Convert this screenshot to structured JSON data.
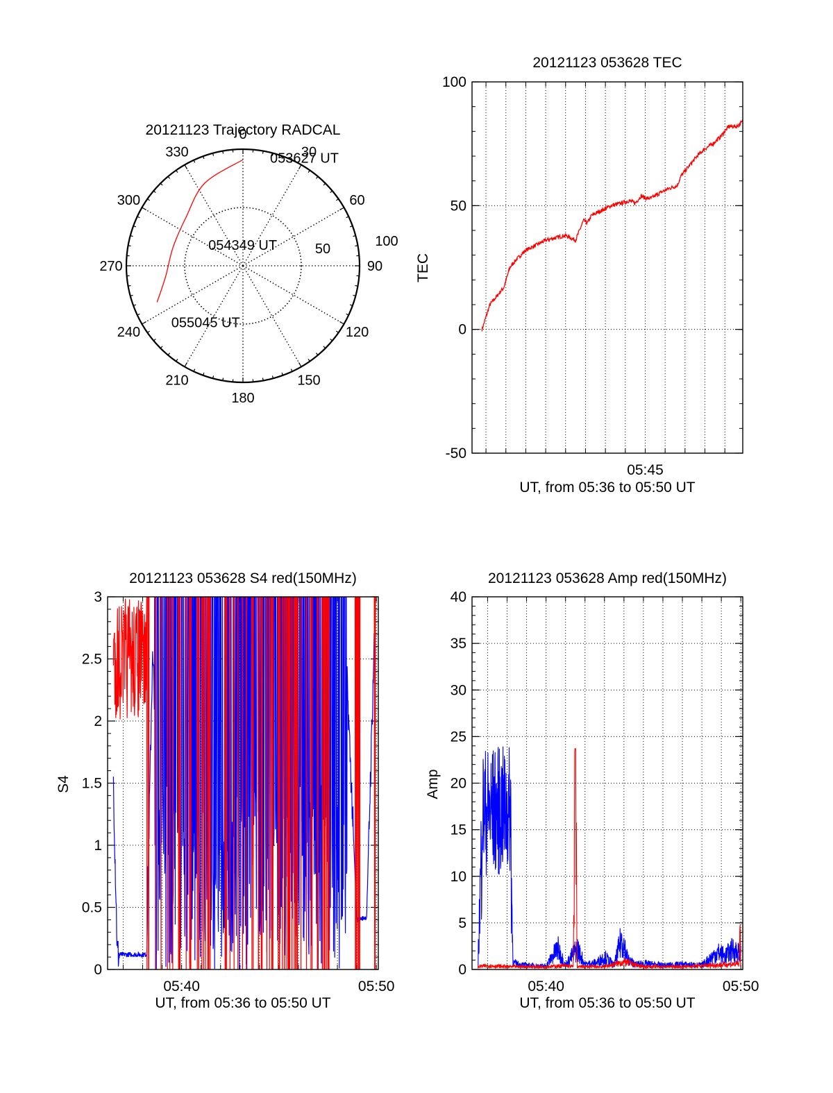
{
  "chart_data": [
    {
      "type": "scatter",
      "title": "20121123 Trajectory RADCAL",
      "azimuth_labels": [
        "0",
        "30",
        "60",
        "90",
        "120",
        "150",
        "180",
        "210",
        "240",
        "270",
        "300",
        "330"
      ],
      "radial_labels": [
        "50",
        "100"
      ],
      "rmax": 100,
      "trajectory": {
        "color": "#ff0000",
        "points": [
          {
            "az": 0,
            "r": 91
          },
          {
            "az": 335,
            "r": 78
          },
          {
            "az": 310,
            "r": 64
          },
          {
            "az": 285,
            "r": 62
          },
          {
            "az": 262,
            "r": 67
          },
          {
            "az": 247,
            "r": 80
          }
        ]
      },
      "annotations": [
        {
          "text": "053627 UT",
          "az": 14,
          "r": 96
        },
        {
          "text": "054349 UT",
          "az": 302,
          "r": 35
        },
        {
          "text": "055045 UT",
          "az": 232,
          "r": 78
        }
      ]
    },
    {
      "type": "line",
      "title": "20121123 053628 TEC",
      "xlabel": "UT, from 05:36 to 05:50 UT",
      "ylabel": "TEC",
      "xlim": [
        36.3,
        49.9
      ],
      "ylim": [
        -50,
        100
      ],
      "yticks": [
        "-50",
        "0",
        "50",
        "100"
      ],
      "xtick_labels": [
        {
          "x": 45,
          "label": "05:45"
        }
      ],
      "series": [
        {
          "color": "#ff0000",
          "x": [
            36.8,
            37.2,
            37.5,
            37.9,
            38.2,
            38.5,
            39.0,
            39.5,
            40.0,
            40.5,
            41.0,
            41.5,
            41.9,
            42.1,
            42.3,
            42.8,
            43.3,
            43.8,
            44.2,
            44.5,
            44.8,
            45.0,
            45.3,
            45.7,
            46.2,
            46.6,
            46.8,
            47.2,
            47.6,
            48.0,
            48.4,
            48.8,
            49.2,
            49.6,
            49.9
          ],
          "y": [
            0,
            10,
            13,
            17,
            25,
            28,
            32,
            34,
            36,
            37,
            38,
            36,
            44,
            43,
            46,
            48,
            50,
            51,
            52,
            51,
            54,
            53,
            53,
            55,
            57,
            58,
            62,
            66,
            70,
            73,
            75,
            78,
            82,
            82,
            84
          ]
        }
      ]
    },
    {
      "type": "line",
      "title": "20121123 053628 S4 red(150MHz)",
      "xlabel": "UT, from 05:36 to 05:50 UT",
      "ylabel": "S4",
      "xlim": [
        36.2,
        50.1
      ],
      "ylim": [
        0,
        3
      ],
      "yticks": [
        "0",
        "0.5",
        "1",
        "1.5",
        "2",
        "2.5",
        "3"
      ],
      "xtick_labels": [
        {
          "x": 40,
          "label": "05:40"
        },
        {
          "x": 50,
          "label": "05:50"
        }
      ],
      "series": [
        {
          "color": "#0000ff",
          "name": "",
          "x": [
            36.5,
            36.7,
            38.2,
            38.5,
            39.0,
            39.5,
            40.0,
            40.5,
            41.0,
            41.5,
            42.0,
            42.5,
            43.0,
            43.5,
            44.0,
            44.5,
            45.0,
            45.5,
            46.0,
            46.5,
            47.0,
            47.5,
            48.0,
            48.5,
            49.0,
            49.5,
            49.9
          ],
          "y": [
            1.5,
            0.12,
            0.12,
            2.5,
            1.2,
            0.5,
            1.3,
            0.4,
            1.8,
            0.6,
            1.5,
            0.9,
            1.2,
            1.0,
            1.5,
            1.1,
            1.4,
            1.3,
            1.7,
            2.0,
            2.4,
            2.8,
            2.9,
            2.3,
            0.4,
            0.42,
            2.7
          ]
        },
        {
          "color": "#ff0000",
          "name": "",
          "x": [
            36.5,
            36.8,
            37.1,
            37.4,
            37.7,
            38.0,
            38.2,
            39.0,
            40.2,
            41.2,
            42.0,
            42.6,
            43.3,
            44.0,
            44.7,
            45.2,
            45.8,
            46.3,
            46.9,
            47.5,
            49.1,
            50.0
          ],
          "y": [
            2.9,
            2.6,
            2.2,
            2.5,
            2.0,
            2.4,
            1.5,
            2.8,
            2.6,
            2.9,
            2.7,
            2.8,
            2.9,
            2.6,
            2.8,
            2.5,
            2.9,
            2.7,
            2.6,
            2.8,
            1.8,
            2.9
          ]
        }
      ]
    },
    {
      "type": "line",
      "title": "20121123 053628 Amp red(150MHz)",
      "xlabel": "UT, from 05:36 to 05:50 UT",
      "ylabel": "Amp",
      "xlim": [
        36.2,
        50.1
      ],
      "ylim": [
        0,
        40
      ],
      "yticks": [
        "0",
        "5",
        "10",
        "15",
        "20",
        "25",
        "30",
        "35",
        "40"
      ],
      "xtick_labels": [
        {
          "x": 40,
          "label": "05:40"
        },
        {
          "x": 50,
          "label": "05:50"
        }
      ],
      "series": [
        {
          "color": "#0000ff",
          "name": "",
          "x": [
            36.5,
            36.7,
            36.9,
            37.2,
            37.5,
            37.8,
            38.0,
            38.2,
            38.3,
            38.6,
            39.0,
            40.0,
            40.6,
            41.0,
            41.6,
            42.0,
            42.6,
            43.0,
            43.5,
            43.9,
            44.2,
            44.6,
            45.0,
            46.0,
            47.0,
            48.0,
            48.8,
            49.2,
            49.6,
            50.0
          ],
          "y": [
            0.5,
            15,
            18,
            19,
            17,
            16,
            15,
            14,
            0.8,
            0.6,
            0.5,
            0.4,
            2.5,
            0.5,
            2.5,
            0.6,
            0.8,
            1.5,
            0.5,
            3.8,
            1.2,
            0.6,
            0.7,
            0.5,
            0.6,
            0.5,
            2.0,
            1.6,
            2.4,
            1.8
          ]
        },
        {
          "color": "#ff0000",
          "name": "",
          "x": [
            36.5,
            37.0,
            38.0,
            39.0,
            40.0,
            41.0,
            41.4,
            41.5,
            41.6,
            42.0,
            43.0,
            44.0,
            45.0,
            46.0,
            47.0,
            48.0,
            49.0,
            49.9,
            50.0
          ],
          "y": [
            0.3,
            0.4,
            0.3,
            0.3,
            0.3,
            0.4,
            0.3,
            23.7,
            0.3,
            0.3,
            0.3,
            0.8,
            0.3,
            0.3,
            0.3,
            0.4,
            0.5,
            0.6,
            6.5
          ]
        }
      ]
    }
  ]
}
